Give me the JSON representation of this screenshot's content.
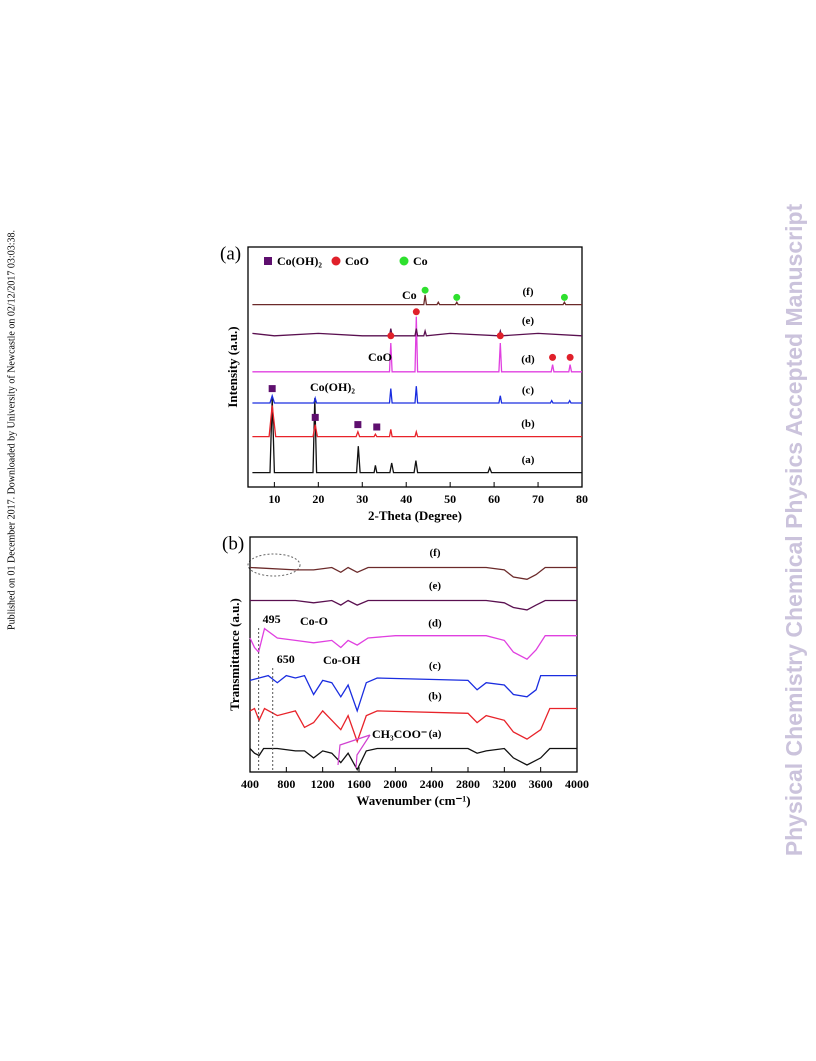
{
  "side_note": "Published on 01 December 2017. Downloaded by University of Newcastle on 02/12/2017 03:03:38.",
  "watermark": "Physical Chemistry Chemical Physics Accepted Manuscript",
  "chart_data": [
    {
      "type": "line",
      "panel_label": "(a)",
      "xlabel": "2-Theta (Degree)",
      "ylabel": "Intensity (a.u.)",
      "xlim": [
        4,
        80
      ],
      "ylim": [
        0,
        100
      ],
      "xticks": [
        10,
        20,
        30,
        40,
        50,
        60,
        70,
        80
      ],
      "legend": [
        {
          "label": "Co(OH)₂",
          "color": "#5e0f6e",
          "marker": "square"
        },
        {
          "label": "CoO",
          "color": "#e0202a",
          "marker": "circle"
        },
        {
          "label": "Co",
          "color": "#2ee02e",
          "marker": "circle"
        }
      ],
      "markers": [
        {
          "legend": 0,
          "x": 9.5,
          "y": 41
        },
        {
          "legend": 0,
          "x": 19.3,
          "y": 29
        },
        {
          "legend": 0,
          "x": 29,
          "y": 26
        },
        {
          "legend": 0,
          "x": 33.3,
          "y": 25
        },
        {
          "legend": 1,
          "x": 36.5,
          "y": 63
        },
        {
          "legend": 1,
          "x": 42.3,
          "y": 73
        },
        {
          "legend": 1,
          "x": 61.4,
          "y": 63
        },
        {
          "legend": 1,
          "x": 73.3,
          "y": 54
        },
        {
          "legend": 1,
          "x": 77.3,
          "y": 54
        },
        {
          "legend": 2,
          "x": 44.3,
          "y": 82
        },
        {
          "legend": 2,
          "x": 51.5,
          "y": 79
        },
        {
          "legend": 2,
          "x": 76,
          "y": 79
        }
      ],
      "annotations": [
        {
          "text": "Co"
        },
        {
          "text": "CoO"
        },
        {
          "text": "Co(OH)₂"
        }
      ],
      "series": [
        {
          "name": "(a)",
          "color": "#111111",
          "x": [
            5,
            9,
            9.5,
            10,
            18.8,
            19.2,
            19.6,
            28.7,
            29.1,
            29.5,
            32.7,
            33,
            33.3,
            36.3,
            36.7,
            37.1,
            41.8,
            42.2,
            42.6,
            58.6,
            59,
            59.4,
            80
          ],
          "values": [
            6,
            6,
            37,
            6,
            6,
            37,
            6,
            6,
            17,
            6,
            6,
            9,
            6,
            6,
            10,
            6,
            6,
            11,
            6,
            6,
            8,
            6,
            6
          ]
        },
        {
          "name": "(b)",
          "color": "#e8232a",
          "x": [
            5,
            8.8,
            9.5,
            10.3,
            18.8,
            19.3,
            19.8,
            28.6,
            29,
            29.4,
            32.7,
            33,
            33.3,
            36.2,
            36.5,
            36.8,
            42,
            42.3,
            42.6,
            80
          ],
          "values": [
            21,
            21,
            34,
            21,
            21,
            26,
            21,
            21,
            23,
            21,
            21,
            22,
            21,
            21,
            24,
            21,
            21,
            23,
            21,
            21
          ]
        },
        {
          "name": "(c)",
          "color": "#1a2de0",
          "x": [
            5,
            9,
            9.5,
            10,
            19,
            19.3,
            19.6,
            36.2,
            36.5,
            36.8,
            42,
            42.3,
            42.6,
            61.1,
            61.4,
            61.7,
            72.8,
            73.1,
            73.4,
            76.9,
            77.2,
            77.5,
            80
          ],
          "values": [
            35,
            35,
            38,
            35,
            35,
            37,
            35,
            35,
            41,
            35,
            35,
            42,
            35,
            35,
            38,
            35,
            35,
            36,
            35,
            35,
            36,
            35,
            35
          ]
        },
        {
          "name": "(d)",
          "color": "#e040e0",
          "x": [
            5,
            36.2,
            36.5,
            36.8,
            42,
            42.3,
            42.6,
            61.1,
            61.4,
            61.7,
            73,
            73.3,
            73.6,
            77,
            77.3,
            77.6,
            80
          ],
          "values": [
            48,
            48,
            60,
            48,
            48,
            71,
            48,
            48,
            60,
            48,
            48,
            51,
            48,
            48,
            51,
            48,
            48
          ]
        },
        {
          "name": "(e)",
          "color": "#5a1050",
          "x": [
            5,
            10,
            20,
            30,
            36.2,
            36.5,
            36.8,
            42,
            42.3,
            42.6,
            44,
            44.3,
            44.6,
            50,
            61.1,
            61.4,
            61.7,
            70,
            80
          ],
          "values": [
            64,
            63,
            64,
            63,
            63,
            66,
            63,
            63,
            66,
            63,
            63,
            65,
            63,
            64,
            63,
            65,
            63,
            64,
            63
          ]
        },
        {
          "name": "(f)",
          "color": "#6b2a2a",
          "x": [
            5,
            44,
            44.3,
            44.6,
            47,
            47.3,
            47.6,
            51.2,
            51.5,
            51.8,
            75.7,
            76,
            76.3,
            80
          ],
          "values": [
            76,
            76,
            80,
            76,
            76,
            77,
            76,
            76,
            77,
            76,
            76,
            77,
            76,
            76
          ]
        }
      ]
    },
    {
      "type": "line",
      "panel_label": "(b)",
      "xlabel": "Wavenumber (cm⁻¹)",
      "ylabel": "Transmittance (a.u.)",
      "xlim": [
        400,
        4000
      ],
      "ylim": [
        0,
        100
      ],
      "xticks": [
        400,
        800,
        1200,
        1600,
        2000,
        2400,
        2800,
        3200,
        3600,
        4000
      ],
      "ref_lines": [
        {
          "value": 495,
          "label": "495"
        },
        {
          "value": 650,
          "label": "650"
        }
      ],
      "annotations": [
        {
          "text": "Co-O"
        },
        {
          "text": "Co-OH"
        },
        {
          "text": "CH₃COO⁻"
        }
      ],
      "series": [
        {
          "name": "(a)",
          "color": "#111111",
          "x": [
            400,
            450,
            500,
            550,
            700,
            900,
            1000,
            1100,
            1200,
            1300,
            1400,
            1480,
            1580,
            1680,
            1800,
            2800,
            2900,
            3000,
            3200,
            3300,
            3450,
            3600,
            3700,
            4000
          ],
          "values": [
            10,
            8,
            7,
            10,
            10,
            9,
            9,
            6,
            9,
            8,
            4,
            8,
            1,
            9,
            10,
            10,
            8,
            9,
            10,
            6,
            3,
            6,
            10,
            10
          ]
        },
        {
          "name": "(b)",
          "color": "#e8232a",
          "x": [
            400,
            450,
            500,
            560,
            700,
            900,
            1000,
            1100,
            1200,
            1300,
            1400,
            1480,
            1580,
            1680,
            1800,
            2800,
            2900,
            3000,
            3200,
            3300,
            3450,
            3600,
            3700,
            4000
          ],
          "values": [
            26,
            27,
            22,
            27,
            24,
            26,
            19,
            21,
            26,
            22,
            18,
            24,
            13,
            24,
            26,
            25,
            21,
            24,
            22,
            17,
            14,
            18,
            27,
            27
          ]
        },
        {
          "name": "(c)",
          "color": "#1a2de0",
          "x": [
            400,
            500,
            600,
            700,
            800,
            900,
            1000,
            1100,
            1200,
            1300,
            1400,
            1480,
            1580,
            1680,
            1800,
            2800,
            2900,
            3000,
            3200,
            3300,
            3450,
            3550,
            3600,
            3700,
            4000
          ],
          "values": [
            39,
            40,
            41,
            38,
            41,
            40,
            41,
            33,
            39,
            38,
            32,
            37,
            26,
            38,
            40,
            39,
            35,
            38,
            37,
            33,
            32,
            35,
            41,
            41,
            41
          ]
        },
        {
          "name": "(d)",
          "color": "#e040e0",
          "x": [
            400,
            450,
            495,
            560,
            700,
            900,
            1100,
            1300,
            1400,
            1480,
            1580,
            1700,
            2000,
            3000,
            3200,
            3300,
            3450,
            3550,
            3650,
            4000
          ],
          "values": [
            57,
            53,
            51,
            61,
            57,
            56,
            55,
            56,
            53,
            56,
            54,
            57,
            58,
            58,
            56,
            51,
            48,
            52,
            58,
            58
          ]
        },
        {
          "name": "(e)",
          "color": "#5a1050",
          "x": [
            400,
            900,
            1100,
            1300,
            1400,
            1480,
            1580,
            1700,
            2000,
            3000,
            3200,
            3300,
            3450,
            3550,
            3650,
            4000
          ],
          "values": [
            73,
            73,
            72,
            73,
            71,
            73,
            71,
            73,
            73,
            73,
            72,
            70,
            69,
            71,
            73,
            73
          ]
        },
        {
          "name": "(f)",
          "color": "#6b2a2a",
          "x": [
            400,
            900,
            1100,
            1300,
            1400,
            1480,
            1580,
            1700,
            2000,
            3000,
            3200,
            3300,
            3450,
            3550,
            3650,
            4000
          ],
          "values": [
            87,
            86,
            86,
            87,
            85,
            87,
            85,
            87,
            87,
            87,
            86,
            83,
            82,
            84,
            87,
            87
          ]
        }
      ]
    }
  ]
}
